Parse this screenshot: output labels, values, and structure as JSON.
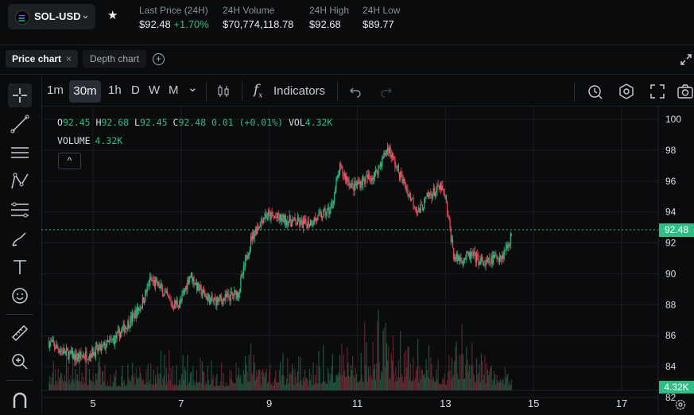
{
  "header": {
    "pair": "SOL-USD",
    "stats": [
      {
        "label": "Last Price (24H)",
        "value": "$92.48",
        "change": "+1.70%"
      },
      {
        "label": "24H Volume",
        "value": "$70,774,118.78"
      },
      {
        "label": "24H High",
        "value": "$92.68"
      },
      {
        "label": "24H Low",
        "value": "$89.77"
      }
    ],
    "icons": {
      "logo": "solana-logo-icon",
      "dropdown": "chevron-down-icon",
      "favorite": "star-icon"
    }
  },
  "tabs": {
    "price": "Price chart",
    "depth": "Depth chart",
    "close": "×",
    "add": "+"
  },
  "toolbar": {
    "timeframes": [
      "1m",
      "30m",
      "1h",
      "D",
      "W",
      "M"
    ],
    "active_timeframe": "30m",
    "indicators_label": "Indicators",
    "fx": "f",
    "dropdown": "⌄"
  },
  "legend": {
    "o_label": "O",
    "o": "92.45",
    "h_label": "H",
    "h": "92.68",
    "l_label": "L",
    "l": "92.45",
    "c_label": "C",
    "c": "92.48",
    "change": "0.01 (+0.01%)",
    "vol_label": "VOL",
    "vol": "4.32K",
    "volume_label": "VOLUME",
    "volume_value": "4.32K",
    "collapse": "^"
  },
  "price_tag": "92.48",
  "volume_tag": "4.32K",
  "chart_data": {
    "type": "candlestick",
    "y_ticks": [
      "100",
      "98",
      "96",
      "94",
      "92",
      "90",
      "88",
      "86",
      "84",
      "82"
    ],
    "ylim": [
      82,
      100
    ],
    "x_ticks": [
      "5",
      "7",
      "9",
      "11",
      "13",
      "15",
      "17"
    ],
    "last_price": 92.48,
    "up_color": "#2ebd85",
    "down_color": "#f6465d",
    "series": [
      {
        "name": "price",
        "points": [
          [
            4.0,
            85.6
          ],
          [
            4.3,
            85.0
          ],
          [
            4.6,
            84.6
          ],
          [
            4.9,
            84.8
          ],
          [
            5.2,
            85.2
          ],
          [
            5.5,
            85.8
          ],
          [
            5.8,
            86.8
          ],
          [
            6.1,
            88.0
          ],
          [
            6.3,
            89.6
          ],
          [
            6.5,
            89.2
          ],
          [
            6.8,
            88.0
          ],
          [
            7.0,
            88.2
          ],
          [
            7.2,
            90.0
          ],
          [
            7.4,
            89.0
          ],
          [
            7.7,
            88.2
          ],
          [
            8.0,
            88.4
          ],
          [
            8.3,
            88.8
          ],
          [
            8.6,
            92.4
          ],
          [
            8.9,
            93.8
          ],
          [
            9.2,
            93.6
          ],
          [
            9.5,
            93.4
          ],
          [
            9.8,
            93.2
          ],
          [
            10.1,
            93.6
          ],
          [
            10.4,
            94.2
          ],
          [
            10.6,
            96.8
          ],
          [
            10.9,
            95.6
          ],
          [
            11.1,
            96.0
          ],
          [
            11.4,
            96.4
          ],
          [
            11.7,
            98.2
          ],
          [
            11.9,
            96.8
          ],
          [
            12.2,
            95.0
          ],
          [
            12.4,
            94.0
          ],
          [
            12.6,
            95.0
          ],
          [
            12.9,
            95.6
          ],
          [
            13.0,
            94.8
          ],
          [
            13.2,
            91.0
          ],
          [
            13.4,
            91.0
          ],
          [
            13.6,
            91.2
          ],
          [
            13.9,
            90.6
          ],
          [
            14.1,
            91.0
          ],
          [
            14.3,
            91.2
          ],
          [
            14.5,
            92.48
          ]
        ]
      },
      {
        "name": "volume",
        "points": [
          [
            4.0,
            0.3
          ],
          [
            4.5,
            0.6
          ],
          [
            5.0,
            0.4
          ],
          [
            5.5,
            0.3
          ],
          [
            6.0,
            0.4
          ],
          [
            6.5,
            0.5
          ],
          [
            7.0,
            0.4
          ],
          [
            7.5,
            0.5
          ],
          [
            8.0,
            0.3
          ],
          [
            8.5,
            0.6
          ],
          [
            9.0,
            0.4
          ],
          [
            9.5,
            0.5
          ],
          [
            10.0,
            0.4
          ],
          [
            10.5,
            0.7
          ],
          [
            11.0,
            0.6
          ],
          [
            11.5,
            1.0
          ],
          [
            12.0,
            0.7
          ],
          [
            12.5,
            0.6
          ],
          [
            13.0,
            0.5
          ],
          [
            13.3,
            1.0
          ],
          [
            13.6,
            0.7
          ],
          [
            14.0,
            0.5
          ],
          [
            14.5,
            0.4
          ]
        ]
      }
    ]
  }
}
